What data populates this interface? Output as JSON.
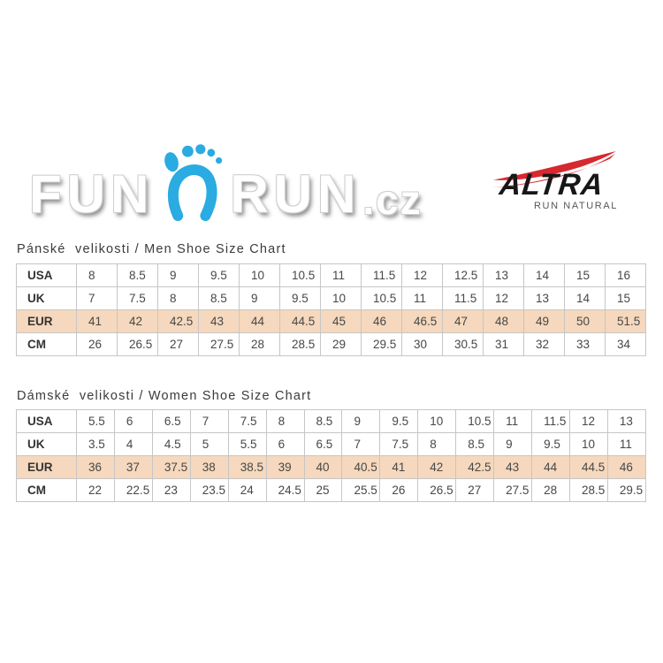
{
  "header": {
    "funrun": {
      "word1": "FUN",
      "word2": "RUN",
      "domain": ".cz",
      "icon_color": "#2aabe2"
    },
    "altra": {
      "brand": "ALTRA",
      "tagline": "RUN NATURAL",
      "accent_color": "#d7282f"
    }
  },
  "men": {
    "title": "Pánské  velikosti / Men Shoe Size Chart",
    "table": {
      "highlight_color": "#f5d8bd",
      "rows": [
        {
          "label": "USA",
          "highlight": false,
          "values": [
            "8",
            "8.5",
            "9",
            "9.5",
            "10",
            "10.5",
            "11",
            "11.5",
            "12",
            "12.5",
            "13",
            "14",
            "15",
            "16"
          ]
        },
        {
          "label": "UK",
          "highlight": false,
          "values": [
            "7",
            "7.5",
            "8",
            "8.5",
            "9",
            "9.5",
            "10",
            "10.5",
            "11",
            "11.5",
            "12",
            "13",
            "14",
            "15"
          ]
        },
        {
          "label": "EUR",
          "highlight": true,
          "values": [
            "41",
            "42",
            "42.5",
            "43",
            "44",
            "44.5",
            "45",
            "46",
            "46.5",
            "47",
            "48",
            "49",
            "50",
            "51.5"
          ]
        },
        {
          "label": "CM",
          "highlight": false,
          "values": [
            "26",
            "26.5",
            "27",
            "27.5",
            "28",
            "28.5",
            "29",
            "29.5",
            "30",
            "30.5",
            "31",
            "32",
            "33",
            "34"
          ]
        }
      ]
    }
  },
  "women": {
    "title": "Dámské  velikosti / Women Shoe Size Chart",
    "table": {
      "highlight_color": "#f5d8bd",
      "rows": [
        {
          "label": "USA",
          "highlight": false,
          "values": [
            "5.5",
            "6",
            "6.5",
            "7",
            "7.5",
            "8",
            "8.5",
            "9",
            "9.5",
            "10",
            "10.5",
            "11",
            "11.5",
            "12",
            "13"
          ]
        },
        {
          "label": "UK",
          "highlight": false,
          "values": [
            "3.5",
            "4",
            "4.5",
            "5",
            "5.5",
            "6",
            "6.5",
            "7",
            "7.5",
            "8",
            "8.5",
            "9",
            "9.5",
            "10",
            "11"
          ]
        },
        {
          "label": "EUR",
          "highlight": true,
          "values": [
            "36",
            "37",
            "37.5",
            "38",
            "38.5",
            "39",
            "40",
            "40.5",
            "41",
            "42",
            "42.5",
            "43",
            "44",
            "44.5",
            "46"
          ]
        },
        {
          "label": "CM",
          "highlight": false,
          "values": [
            "22",
            "22.5",
            "23",
            "23.5",
            "24",
            "24.5",
            "25",
            "25.5",
            "26",
            "26.5",
            "27",
            "27.5",
            "28",
            "28.5",
            "29.5"
          ]
        }
      ]
    }
  }
}
